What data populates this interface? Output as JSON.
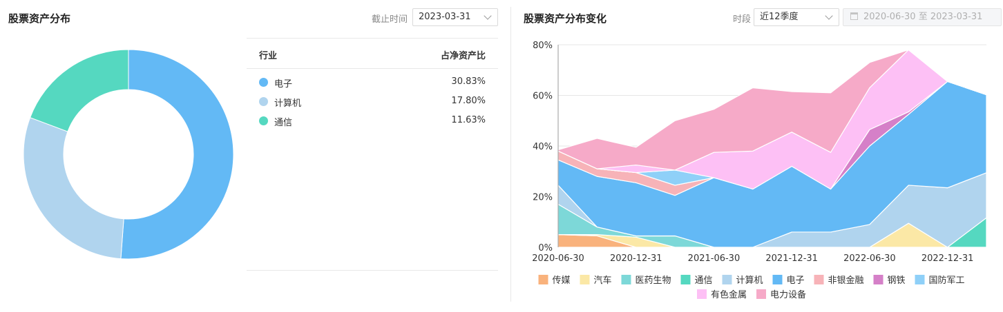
{
  "left_panel": {
    "title": "股票资产分布",
    "date_label": "截止时间",
    "date_value": "2023-03-31"
  },
  "table": {
    "header_industry": "行业",
    "header_ratio": "占净资产比",
    "rows": [
      {
        "name": "电子",
        "value": "30.83%",
        "color": "#63b9f5"
      },
      {
        "name": "计算机",
        "value": "17.80%",
        "color": "#b0d4ee"
      },
      {
        "name": "通信",
        "value": "11.63%",
        "color": "#55d8c0"
      }
    ]
  },
  "right_panel": {
    "title": "股票资产分布变化",
    "period_label": "时段",
    "period_value": "近12季度",
    "range_start": "2020-06-30",
    "range_sep": "至",
    "range_end": "2023-03-31"
  },
  "chart_data": [
    {
      "type": "pie",
      "donut": true,
      "labels": [
        "电子",
        "计算机",
        "通信"
      ],
      "values": [
        30.83,
        17.8,
        11.63
      ],
      "colors": [
        "#63b9f5",
        "#b0d4ee",
        "#55d8c0"
      ]
    },
    {
      "type": "area",
      "stacked": true,
      "x": [
        "2020-06-30",
        "2020-09-30",
        "2020-12-31",
        "2021-03-31",
        "2021-06-30",
        "2021-09-30",
        "2021-12-31",
        "2022-03-31",
        "2022-06-30",
        "2022-09-30",
        "2022-12-31",
        "2023-03-31"
      ],
      "x_tick_labels": [
        "2020-06-30",
        "2020-12-31",
        "2021-06-30",
        "2021-12-31",
        "2022-06-30",
        "2022-12-31"
      ],
      "y_ticks": [
        "0%",
        "20%",
        "40%",
        "60%",
        "80%"
      ],
      "ylim": [
        0,
        80
      ],
      "grid": true,
      "legend_position": "bottom",
      "series": [
        {
          "name": "传媒",
          "color": "#f9b27c",
          "values": [
            5,
            4.5,
            0,
            0,
            0,
            0,
            0,
            0,
            0,
            0,
            0,
            0
          ]
        },
        {
          "name": "汽车",
          "color": "#fbe8a6",
          "values": [
            0,
            0.5,
            4,
            0,
            0,
            0,
            0,
            0,
            0,
            9.5,
            0,
            0
          ]
        },
        {
          "name": "医药生物",
          "color": "#7dd8d8",
          "values": [
            12,
            3,
            0.5,
            4.5,
            0,
            0,
            0,
            0,
            0,
            0,
            0,
            0
          ]
        },
        {
          "name": "通信",
          "color": "#55d8c0",
          "values": [
            0,
            0,
            0,
            0,
            0,
            0,
            0,
            0,
            0,
            0,
            0,
            11.63
          ]
        },
        {
          "name": "计算机",
          "color": "#b0d4ee",
          "values": [
            7.5,
            0,
            0,
            0,
            0,
            0,
            6,
            6,
            9,
            15,
            23.5,
            17.8
          ]
        },
        {
          "name": "电子",
          "color": "#63b9f5",
          "values": [
            10,
            20,
            21,
            16,
            27.5,
            23,
            26,
            17,
            31,
            28,
            42,
            30.83
          ]
        },
        {
          "name": "非银金融",
          "color": "#f7b3b8",
          "values": [
            3.5,
            3,
            4,
            4,
            0,
            0,
            0,
            0,
            0,
            0,
            0,
            0
          ]
        },
        {
          "name": "钢铁",
          "color": "#d580c8",
          "values": [
            0,
            0,
            0,
            0,
            0,
            0,
            0,
            0,
            6.5,
            1,
            0,
            0
          ]
        },
        {
          "name": "国防军工",
          "color": "#8fd0f8",
          "values": [
            0,
            0,
            0,
            6,
            0,
            0,
            0,
            0,
            0,
            0,
            0,
            0
          ]
        },
        {
          "name": "有色金属",
          "color": "#fdc0f5",
          "values": [
            0,
            0,
            3,
            0,
            10,
            15,
            13.5,
            14.5,
            16.5,
            24.5,
            0,
            0
          ]
        },
        {
          "name": "电力设备",
          "color": "#f6aac8",
          "values": [
            0.5,
            12,
            7,
            19.5,
            17,
            25,
            16,
            23.5,
            10,
            0,
            0,
            0
          ]
        }
      ]
    }
  ]
}
